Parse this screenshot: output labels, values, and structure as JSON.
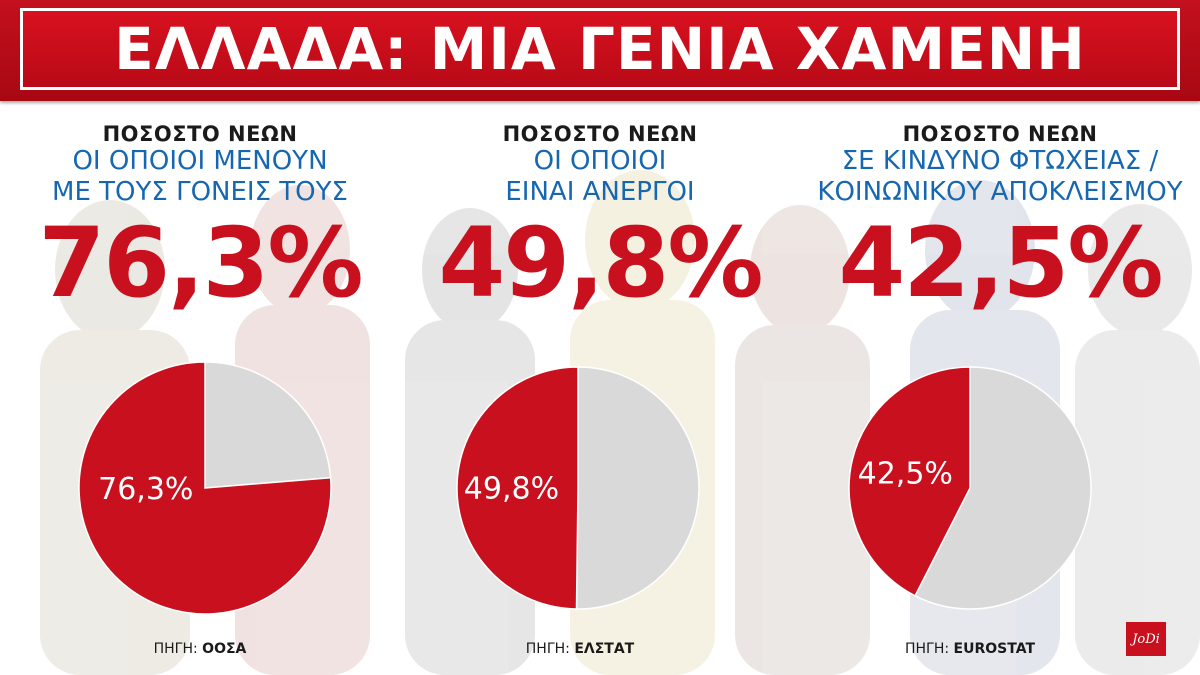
{
  "title": "ΕΛΛΑΔΑ: ΜΙΑ ΓΕΝΙΑ ΧΑΜΕΝΗ",
  "logo_text": "JoDi",
  "colors": {
    "accent": "#c8101e",
    "subtitle": "#1667b0",
    "remainder": "#d9d9d9"
  },
  "panels": [
    {
      "kicker": "ΠΟΣΟΣΤΟ ΝΕΩΝ",
      "sub1": "ΟΙ ΟΠΟΙΟΙ ΜΕΝΟΥΝ",
      "sub2": "ΜΕ ΤΟΥΣ ΓΟΝΕΙΣ ΤΟΥΣ",
      "big_value": "76,3%",
      "source_label": "ΠΗΓΗ:",
      "source_name": "ΟΟΣΑ"
    },
    {
      "kicker": "ΠΟΣΟΣΤΟ ΝΕΩΝ",
      "sub1": "ΟΙ ΟΠΟΙΟΙ",
      "sub2": "ΕΙΝΑΙ ΑΝΕΡΓΟΙ",
      "big_value": "49,8%",
      "source_label": "ΠΗΓΗ:",
      "source_name": "ΕΛΣΤΑΤ"
    },
    {
      "kicker": "ΠΟΣΟΣΤΟ ΝΕΩΝ",
      "sub1": "ΣΕ ΚΙΝΔΥΝΟ ΦΤΩΧΕΙΑΣ /",
      "sub2": "ΚΟΙΝΩΝΙΚΟΥ ΑΠΟΚΛΕΙΣΜΟΥ",
      "big_value": "42,5%",
      "source_label": "ΠΗΓΗ:",
      "source_name": "EUROSTAT"
    }
  ],
  "chart_data": [
    {
      "type": "pie",
      "values": [
        76.3,
        23.7
      ],
      "slice_label": "76,3%"
    },
    {
      "type": "pie",
      "values": [
        49.8,
        50.2
      ],
      "slice_label": "49,8%"
    },
    {
      "type": "pie",
      "values": [
        42.5,
        57.5
      ],
      "slice_label": "42,5%"
    }
  ]
}
